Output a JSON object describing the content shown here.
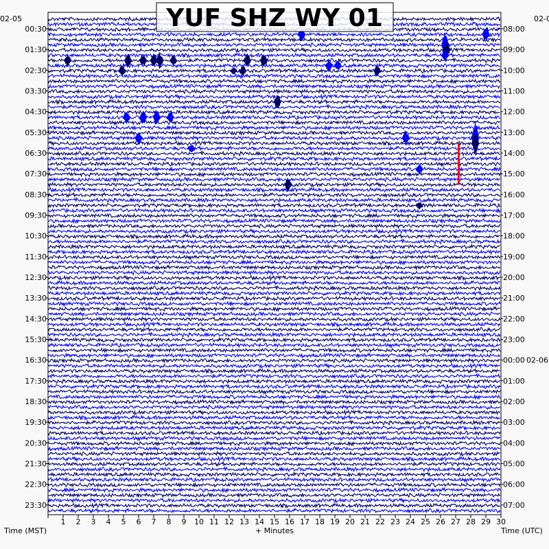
{
  "chart_data": {
    "type": "line",
    "title": "YUF SHZ WY 01",
    "left_date": "02-05",
    "right_date_start": "02-0",
    "right_date_change": "02-06",
    "xlabel": "+ Minutes",
    "left_axis_label": "Time (MST)",
    "right_axis_label": "Time (UTC)",
    "x_ticks": [
      "1",
      "2",
      "3",
      "4",
      "5",
      "6",
      "7",
      "8",
      "9",
      "10",
      "11",
      "12",
      "13",
      "14",
      "15",
      "16",
      "17",
      "18",
      "19",
      "20",
      "21",
      "22",
      "23",
      "24",
      "25",
      "26",
      "27",
      "28",
      "29",
      "30"
    ],
    "xlim": [
      0,
      30
    ],
    "row_minutes": 15,
    "row_count": 96,
    "left_labels": [
      "00:30",
      "01:30",
      "02:30",
      "03:30",
      "04:30",
      "05:30",
      "06:30",
      "07:30",
      "08:30",
      "09:30",
      "10:30",
      "11:30",
      "12:30",
      "13:30",
      "14:30",
      "15:30",
      "16:30",
      "17:30",
      "18:30",
      "19:30",
      "20:30",
      "21:30",
      "22:30",
      "23:30"
    ],
    "right_labels": [
      "08:00",
      "09:00",
      "10:00",
      "11:00",
      "12:00",
      "13:00",
      "14:00",
      "15:00",
      "16:00",
      "17:00",
      "18:00",
      "19:00",
      "20:00",
      "21:00",
      "22:00",
      "23:00",
      "00:00",
      "01:00",
      "02:00",
      "03:00",
      "04:00",
      "05:00",
      "06:00",
      "07:00"
    ],
    "trace_colors": [
      "#000066",
      "#0000ff"
    ],
    "marker_color": "#ff0000",
    "events": [
      {
        "row": 3,
        "minute": 16.8,
        "amplitude": 10
      },
      {
        "row": 3,
        "minute": 29.0,
        "amplitude": 12
      },
      {
        "row": 5,
        "minute": 26.3,
        "amplitude": 22
      },
      {
        "row": 6,
        "minute": 26.4,
        "amplitude": 14
      },
      {
        "row": 7,
        "minute": 26.3,
        "amplitude": 9
      },
      {
        "row": 8,
        "minute": 1.3,
        "amplitude": 10
      },
      {
        "row": 8,
        "minute": 5.3,
        "amplitude": 10
      },
      {
        "row": 8,
        "minute": 6.3,
        "amplitude": 9
      },
      {
        "row": 8,
        "minute": 7.0,
        "amplitude": 10
      },
      {
        "row": 8,
        "minute": 7.4,
        "amplitude": 12
      },
      {
        "row": 8,
        "minute": 8.3,
        "amplitude": 8
      },
      {
        "row": 8,
        "minute": 13.2,
        "amplitude": 10
      },
      {
        "row": 8,
        "minute": 14.3,
        "amplitude": 11
      },
      {
        "row": 9,
        "minute": 18.6,
        "amplitude": 9
      },
      {
        "row": 9,
        "minute": 19.2,
        "amplitude": 8
      },
      {
        "row": 10,
        "minute": 4.9,
        "amplitude": 8
      },
      {
        "row": 10,
        "minute": 12.3,
        "amplitude": 6
      },
      {
        "row": 10,
        "minute": 12.9,
        "amplitude": 8
      },
      {
        "row": 10,
        "minute": 21.8,
        "amplitude": 8
      },
      {
        "row": 16,
        "minute": 15.2,
        "amplitude": 11
      },
      {
        "row": 19,
        "minute": 5.2,
        "amplitude": 10
      },
      {
        "row": 19,
        "minute": 6.3,
        "amplitude": 11
      },
      {
        "row": 19,
        "minute": 7.2,
        "amplitude": 11
      },
      {
        "row": 19,
        "minute": 8.1,
        "amplitude": 10
      },
      {
        "row": 23,
        "minute": 6.0,
        "amplitude": 10
      },
      {
        "row": 23,
        "minute": 23.7,
        "amplitude": 12
      },
      {
        "row": 23,
        "minute": 28.3,
        "amplitude": 26
      },
      {
        "row": 24,
        "minute": 28.3,
        "amplitude": 18
      },
      {
        "row": 25,
        "minute": 9.5,
        "amplitude": 6
      },
      {
        "row": 29,
        "minute": 24.6,
        "amplitude": 8
      },
      {
        "row": 32,
        "minute": 15.9,
        "amplitude": 11
      },
      {
        "row": 36,
        "minute": 24.6,
        "amplitude": 6
      }
    ],
    "marker": {
      "minute": 27.2,
      "row_start": 25.0,
      "row_end": 32.0
    },
    "grid": false
  }
}
